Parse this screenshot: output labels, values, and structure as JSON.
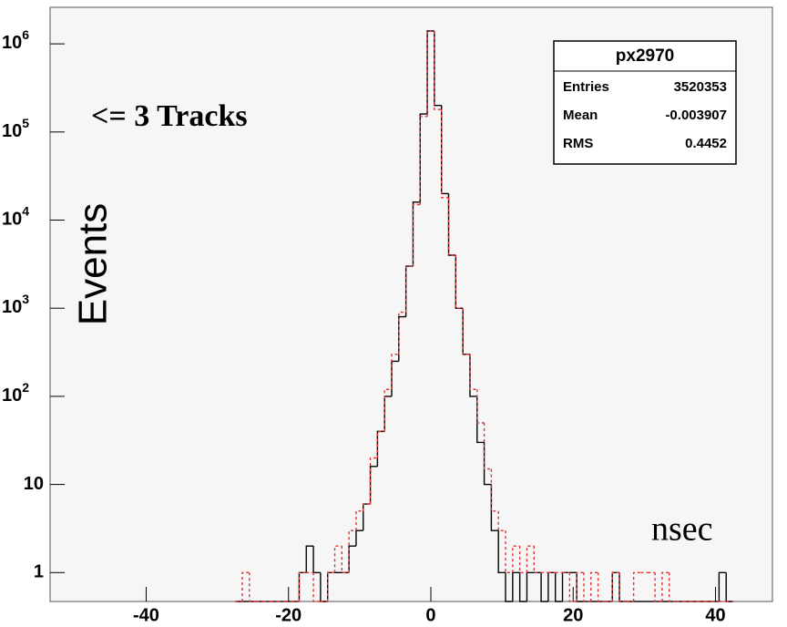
{
  "chart_data": {
    "type": "histogram",
    "log_y": true,
    "ylabel": "Events",
    "xlabel": "nsec",
    "annotation": "<= 3 Tracks",
    "bins": [
      -27.5,
      -26.5,
      -25.5,
      -24.5,
      -23.5,
      -22.5,
      -21.5,
      -20.5,
      -19.5,
      -18.5,
      -17.5,
      -16.5,
      -15.5,
      -14.5,
      -13.5,
      -12.5,
      -11.5,
      -10.5,
      -9.5,
      -8.5,
      -7.5,
      -6.5,
      -5.5,
      -4.5,
      -3.5,
      -2.5,
      -1.5,
      -0.5,
      0.5,
      1.5,
      2.5,
      3.5,
      4.5,
      5.5,
      6.5,
      7.5,
      8.5,
      9.5,
      10.5,
      11.5,
      12.5,
      13.5,
      14.5,
      15.5,
      16.5,
      17.5,
      18.5,
      19.5,
      20.5,
      21.5,
      22.5,
      23.5,
      24.5,
      25.5,
      26.5,
      27.5,
      28.5,
      29.5,
      30.5,
      31.5,
      32.5,
      33.5,
      34.5,
      35.5,
      36.5,
      37.5,
      38.5,
      39.5,
      40.5,
      41.5,
      42.5
    ],
    "series": [
      {
        "color": "#000000",
        "line_style": "solid",
        "values": [
          0,
          0,
          0,
          0,
          0,
          0,
          0,
          0,
          0,
          1,
          2,
          1,
          0,
          1,
          1,
          1,
          2,
          3,
          6,
          16,
          40,
          100,
          250,
          800,
          3000,
          16000,
          160000,
          1400000,
          200000,
          20000,
          4000,
          1000,
          300,
          100,
          30,
          10,
          3,
          1,
          0,
          1,
          0,
          1,
          1,
          0,
          1,
          0,
          1,
          1,
          0,
          0,
          0,
          0,
          0,
          1,
          0,
          0,
          0,
          0,
          0,
          0,
          0,
          0,
          0,
          0,
          0,
          0,
          0,
          0,
          1,
          0
        ]
      },
      {
        "color": "#e03030",
        "line_style": "dashed",
        "values": [
          0,
          1,
          0,
          0,
          0,
          0,
          0,
          0,
          0,
          1,
          1,
          0,
          0,
          1,
          2,
          1,
          3,
          5,
          6,
          20,
          40,
          120,
          300,
          900,
          3000,
          15000,
          150000,
          1400000,
          180000,
          18000,
          4000,
          1000,
          300,
          120,
          50,
          15,
          5,
          3,
          1,
          2,
          1,
          2,
          1,
          1,
          1,
          1,
          1,
          0,
          1,
          0,
          1,
          0,
          0,
          1,
          0,
          0,
          1,
          1,
          1,
          0,
          1,
          0,
          0,
          0,
          0,
          0,
          0,
          0,
          0,
          0
        ]
      }
    ],
    "xlim": [
      -53.5,
      48
    ],
    "xticks": [
      -40,
      -20,
      0,
      20,
      40
    ],
    "ylim": [
      0.47,
      2600000
    ],
    "yticks": [
      1,
      10,
      {
        "value": 100,
        "label": "10",
        "exponent": "2"
      },
      {
        "value": 1000,
        "label": "10",
        "exponent": "3"
      },
      {
        "value": 10000,
        "label": "10",
        "exponent": "4"
      },
      {
        "value": 100000,
        "label": "10",
        "exponent": "5"
      },
      {
        "value": 1000000,
        "label": "10",
        "exponent": "6"
      }
    ],
    "stats": {
      "title": "px2970",
      "rows": [
        [
          "Entries",
          "3520353"
        ],
        [
          "Mean",
          "-0.003907"
        ],
        [
          "RMS",
          "0.4452"
        ]
      ]
    }
  }
}
